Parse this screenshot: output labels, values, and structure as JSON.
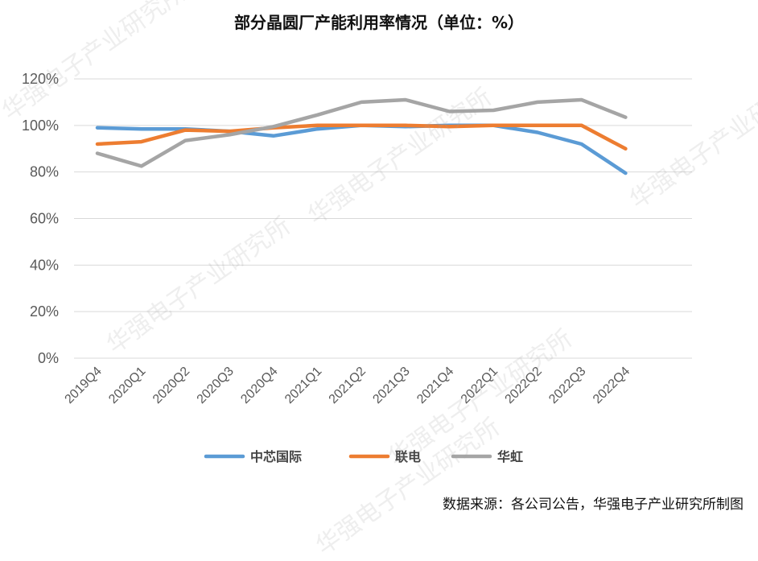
{
  "title": "部分晶圆厂产能利用率情况（单位：%）",
  "source": "数据来源：各公司公告，华强电子产业研究所制图",
  "watermark": "华强电子产业研究所",
  "chart_data": {
    "type": "line",
    "title": "部分晶圆厂产能利用率情况（单位：%）",
    "xlabel": "",
    "ylabel": "",
    "ylim": [
      0,
      120
    ],
    "y_ticks": [
      "0%",
      "20%",
      "40%",
      "60%",
      "80%",
      "100%",
      "120%"
    ],
    "categories": [
      "2019Q4",
      "2020Q1",
      "2020Q2",
      "2020Q3",
      "2020Q4",
      "2021Q1",
      "2021Q2",
      "2021Q3",
      "2021Q4",
      "2022Q1",
      "2022Q2",
      "2022Q3",
      "2022Q4"
    ],
    "grid": "horizontal",
    "legend_position": "bottom",
    "series": [
      {
        "name": "中芯国际",
        "color": "#5b9bd5",
        "values": [
          99,
          98.5,
          98.5,
          97.5,
          95.5,
          98.5,
          100,
          99.5,
          100,
          100,
          97,
          92,
          79.5
        ]
      },
      {
        "name": "联电",
        "color": "#ed7d31",
        "values": [
          92,
          93,
          98,
          97.5,
          99,
          100,
          100,
          100,
          99.5,
          100,
          100,
          100,
          90
        ]
      },
      {
        "name": "华虹",
        "color": "#a5a5a5",
        "values": [
          88,
          82.5,
          93.5,
          96,
          99.5,
          104.5,
          110,
          111,
          106,
          106.5,
          110,
          111,
          103.5
        ]
      }
    ]
  }
}
